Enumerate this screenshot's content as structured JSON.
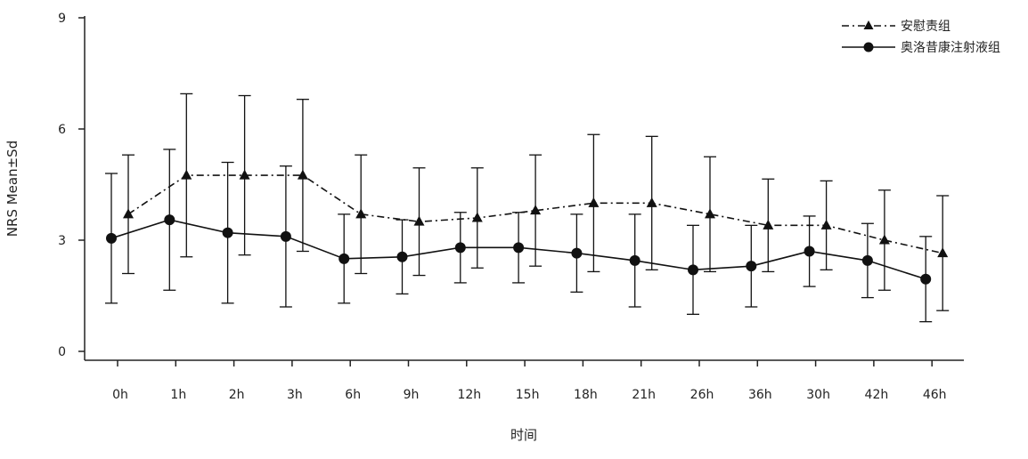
{
  "chart_data": {
    "type": "line",
    "title": "",
    "xlabel": "时间",
    "ylabel": "NRS Mean±Sd",
    "ylim": [
      0,
      9
    ],
    "yticks": [
      "0",
      "3",
      "6",
      "9"
    ],
    "categories": [
      "0h",
      "1h",
      "2h",
      "3h",
      "6h",
      "9h",
      "12h",
      "15h",
      "18h",
      "21h",
      "26h",
      "36h",
      "30h",
      "42h",
      "46h"
    ],
    "grid": false,
    "legend_position": "top-right",
    "series": [
      {
        "name": "安慰责组",
        "line_style": "dash-dot",
        "marker": "triangle",
        "color": "#111111",
        "values": [
          3.7,
          4.75,
          4.75,
          4.75,
          3.7,
          3.5,
          3.6,
          3.8,
          4.0,
          4.0,
          3.7,
          3.4,
          3.4,
          3.0,
          2.65
        ],
        "sd": [
          1.6,
          2.2,
          2.15,
          2.05,
          1.6,
          1.45,
          1.35,
          1.5,
          1.85,
          1.8,
          1.55,
          1.25,
          1.2,
          1.35,
          1.55
        ]
      },
      {
        "name": "奥洛昔康注射液组",
        "line_style": "solid",
        "marker": "circle",
        "color": "#111111",
        "values": [
          3.05,
          3.55,
          3.2,
          3.1,
          2.5,
          2.55,
          2.8,
          2.8,
          2.65,
          2.45,
          2.2,
          2.3,
          2.7,
          2.45,
          1.95
        ],
        "sd": [
          1.75,
          1.9,
          1.9,
          1.9,
          1.2,
          1.0,
          0.95,
          0.95,
          1.05,
          1.25,
          1.2,
          1.1,
          0.95,
          1.0,
          1.15
        ]
      }
    ]
  }
}
